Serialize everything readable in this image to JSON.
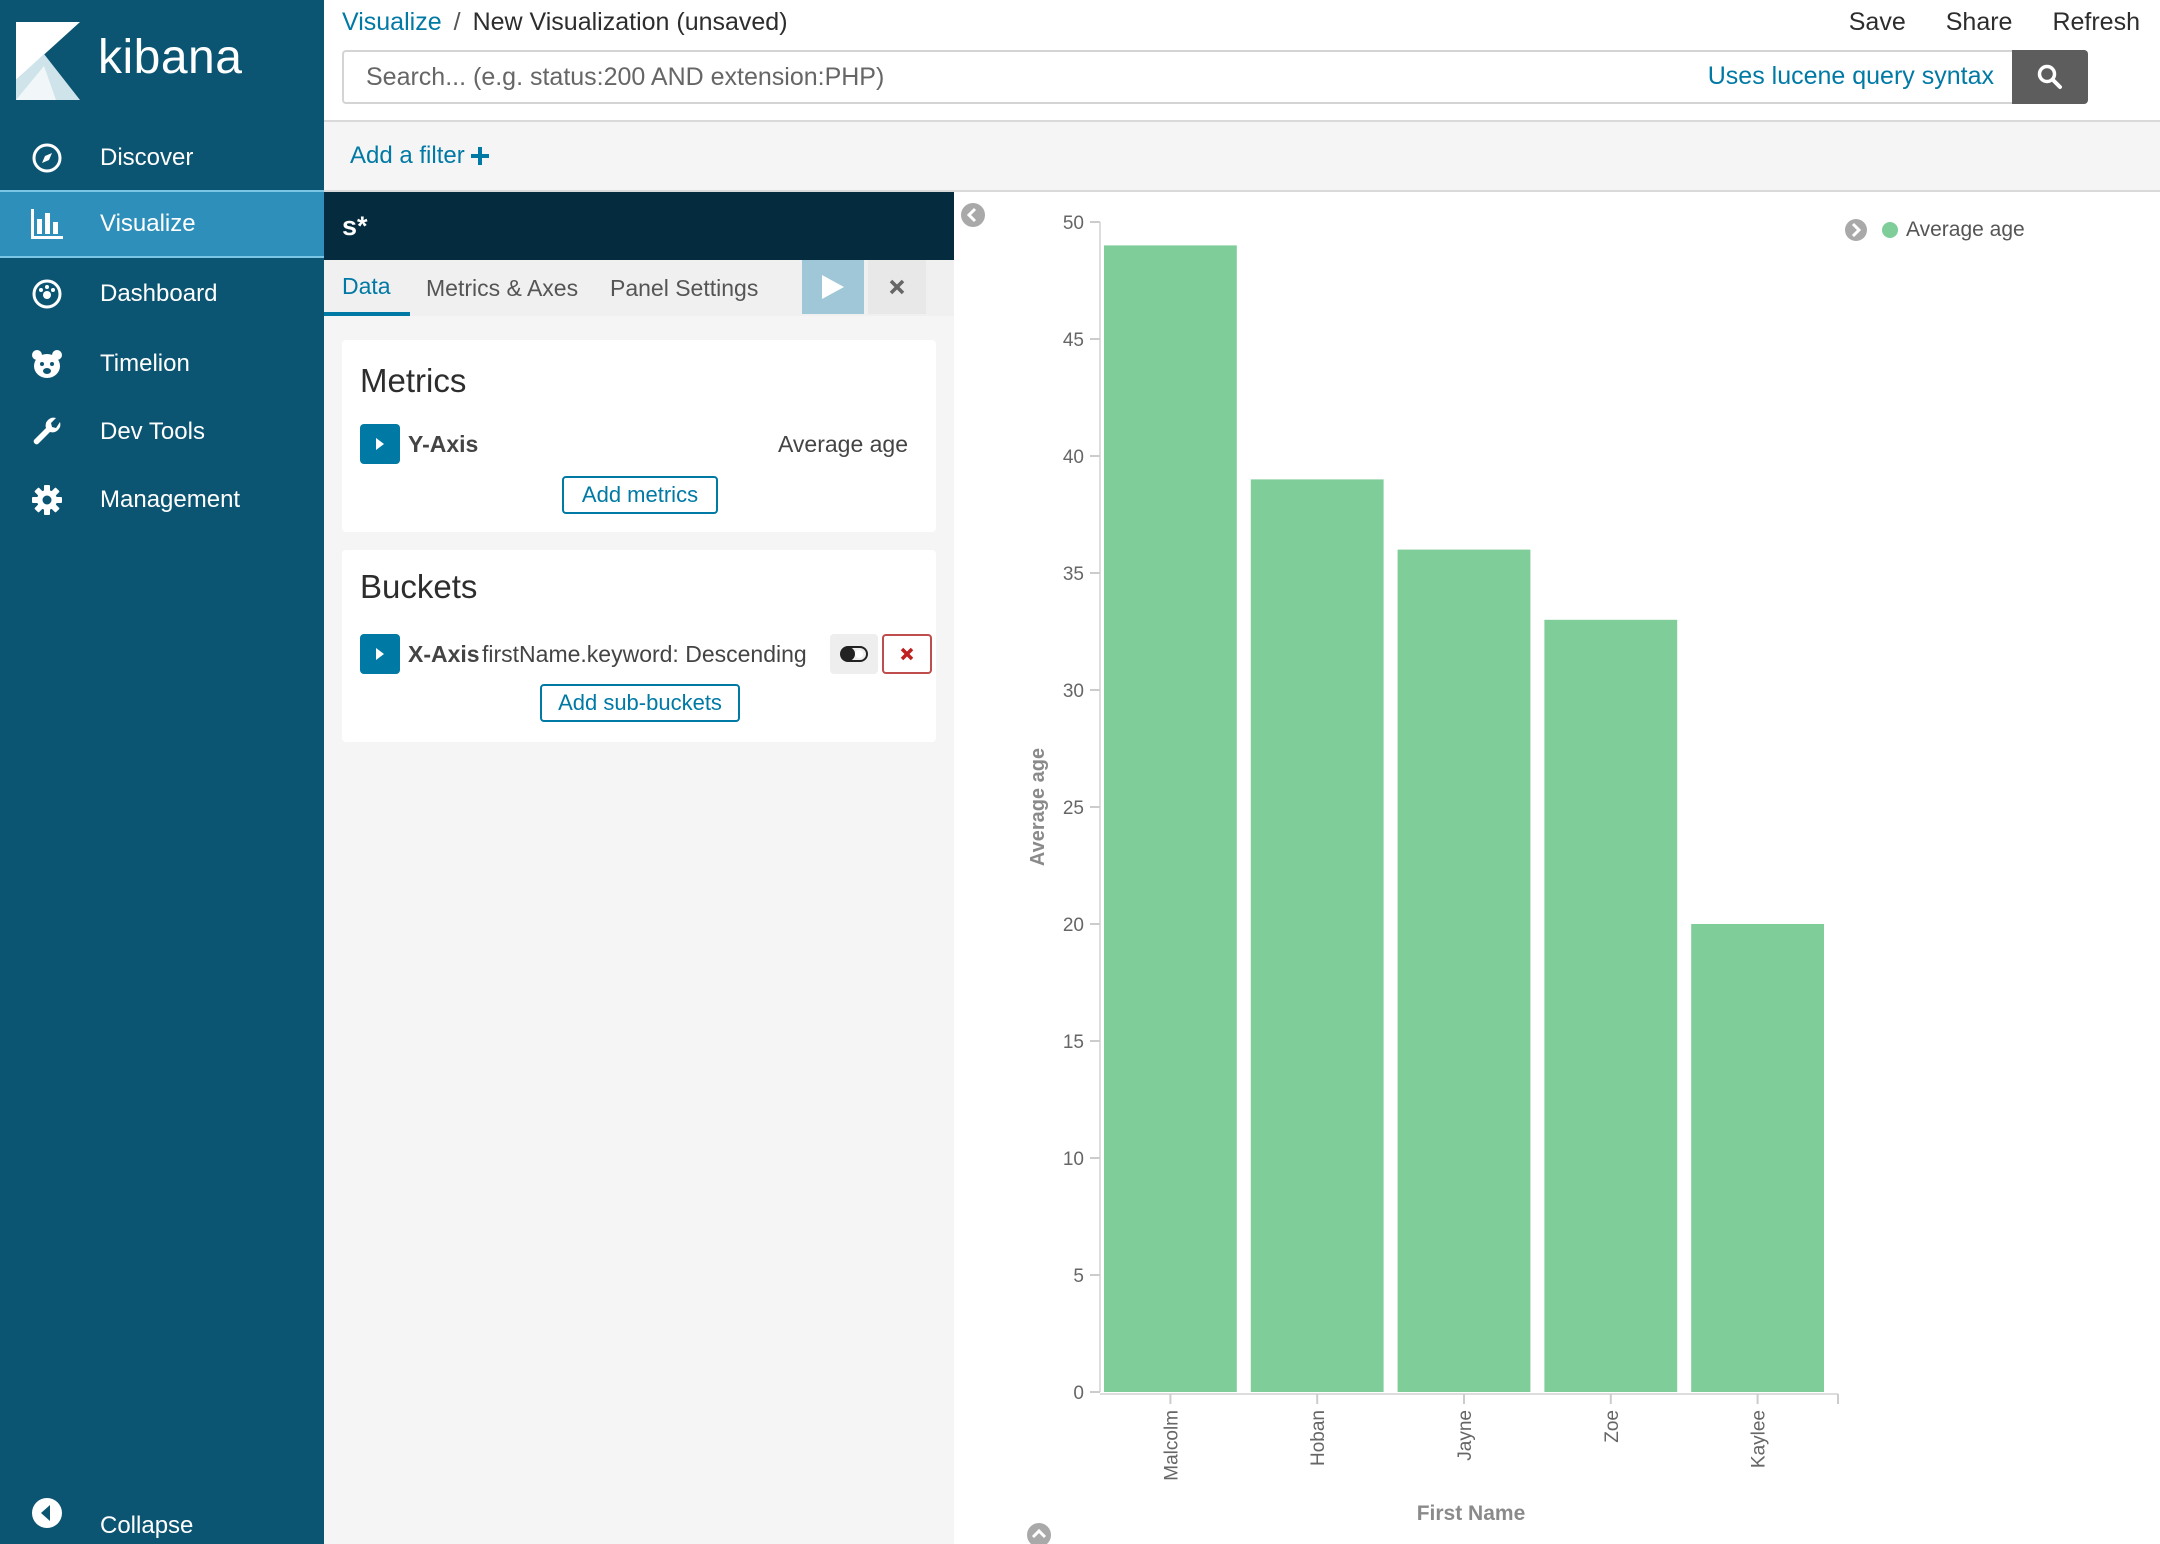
{
  "app": {
    "brand": "kibana"
  },
  "sidebar": {
    "items": [
      {
        "label": "Discover",
        "icon": "compass-icon"
      },
      {
        "label": "Visualize",
        "icon": "bar-chart-icon",
        "active": true
      },
      {
        "label": "Dashboard",
        "icon": "dashboard-gauge-icon"
      },
      {
        "label": "Timelion",
        "icon": "timelion-bear-icon"
      },
      {
        "label": "Dev Tools",
        "icon": "wrench-icon"
      },
      {
        "label": "Management",
        "icon": "gear-icon"
      }
    ],
    "collapse_label": "Collapse"
  },
  "header": {
    "breadcrumb_link": "Visualize",
    "breadcrumb_sep": "/",
    "breadcrumb_current": "New Visualization (unsaved)",
    "actions": {
      "save": "Save",
      "share": "Share",
      "refresh": "Refresh"
    },
    "search": {
      "placeholder": "Search... (e.g. status:200 AND extension:PHP)",
      "value": "",
      "syntax_link": "Uses lucene query syntax"
    },
    "add_filter": "Add a filter"
  },
  "editor": {
    "index_pattern": "s*",
    "tabs": [
      "Data",
      "Metrics & Axes",
      "Panel Settings"
    ],
    "active_tab": "Data",
    "metrics": {
      "title": "Metrics",
      "agg_label": "Y-Axis",
      "agg_desc": "Average age",
      "add_button": "Add metrics"
    },
    "buckets": {
      "title": "Buckets",
      "agg_label": "X-Axis",
      "agg_desc": "firstName.keyword: Descending",
      "add_button": "Add sub-buckets"
    }
  },
  "colors": {
    "sidebar_bg": "#0b5572",
    "sidebar_active": "#2d8fba",
    "accent": "#0079a5",
    "bar": "#7fcd99",
    "index_bar": "#052c3e"
  },
  "chart_data": {
    "type": "bar",
    "categories": [
      "Malcolm",
      "Hoban",
      "Jayne",
      "Zoe",
      "Kaylee"
    ],
    "series": [
      {
        "name": "Average age",
        "values": [
          49,
          39,
          36,
          33,
          20
        ]
      }
    ],
    "xlabel": "First Name",
    "ylabel": "Average age",
    "ylim": [
      0,
      50
    ],
    "yticks": [
      0,
      5,
      10,
      15,
      20,
      25,
      30,
      35,
      40,
      45,
      50
    ],
    "legend": "top-right",
    "grid": false
  }
}
